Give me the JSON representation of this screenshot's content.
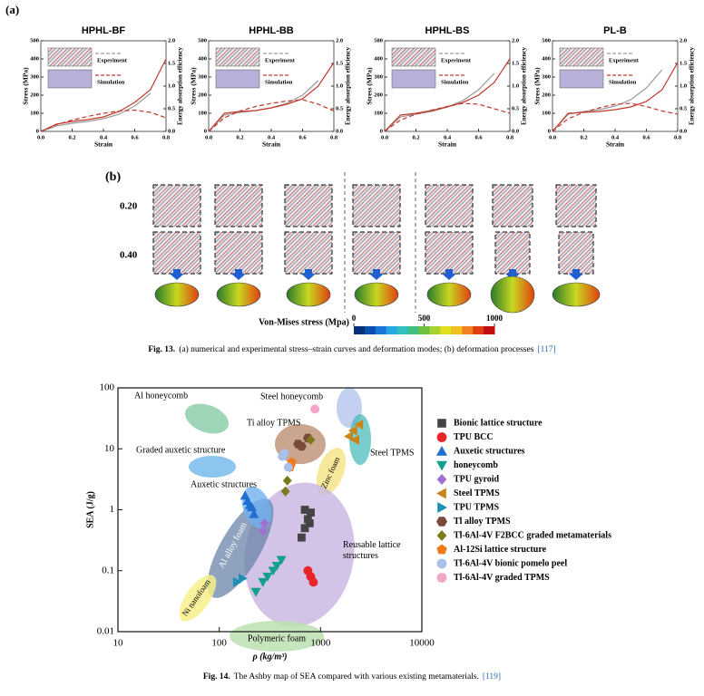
{
  "figure_13": {
    "panel_a_label": "(a)",
    "charts": [
      {
        "title": "HPHL-BF",
        "xlabel": "Strain",
        "ylabel": "Stress (MPa)",
        "y2label": "Energy absorption efficiency",
        "xlim": [
          0,
          0.8
        ],
        "ylim": [
          0,
          500
        ],
        "y2lim": [
          0,
          2.0
        ],
        "xticks": [
          {
            "value": 0,
            "label": "0.0"
          },
          {
            "value": 0.2,
            "label": "0.2"
          },
          {
            "value": 0.4,
            "label": "0.4"
          },
          {
            "value": 0.6,
            "label": "0.6"
          },
          {
            "value": 0.8,
            "label": "0.8"
          }
        ],
        "yticks": [
          0,
          100,
          200,
          300,
          400,
          500
        ],
        "y2ticks": [
          {
            "value": 0,
            "label": "0.0"
          },
          {
            "value": 0.5,
            "label": "0.5"
          },
          {
            "value": 1,
            "label": "1.0"
          },
          {
            "value": 1.5,
            "label": "1.5"
          },
          {
            "value": 2,
            "label": "2.0"
          }
        ],
        "x": [
          0,
          0.1,
          0.2,
          0.3,
          0.4,
          0.5,
          0.6,
          0.7,
          0.8
        ],
        "series": [
          {
            "name": "Experiment",
            "color": "#9a9a9a",
            "values": [
              0,
              30,
              45,
              55,
              70,
              95,
              140,
              210,
              null
            ]
          },
          {
            "name": "Simulation",
            "color": "#c0392b",
            "values": [
              0,
              40,
              55,
              65,
              80,
              110,
              160,
              230,
              400
            ]
          },
          {
            "axis": "y2",
            "color": "#c0392b",
            "dashed": true,
            "values": [
              0,
              0.15,
              0.25,
              0.33,
              0.4,
              0.45,
              0.47,
              0.42,
              0.3
            ]
          }
        ]
      },
      {
        "title": "HPHL-BB",
        "xlabel": "Strain",
        "ylabel": "Stress (MPa)",
        "y2label": "Energy absorption efficiency",
        "xlim": [
          0,
          0.8
        ],
        "ylim": [
          0,
          500
        ],
        "y2lim": [
          0,
          2.0
        ],
        "xticks": [
          {
            "value": 0,
            "label": "0.0"
          },
          {
            "value": 0.2,
            "label": "0.2"
          },
          {
            "value": 0.4,
            "label": "0.4"
          },
          {
            "value": 0.6,
            "label": "0.6"
          },
          {
            "value": 0.8,
            "label": "0.8"
          }
        ],
        "yticks": [
          0,
          100,
          200,
          300,
          400,
          500
        ],
        "y2ticks": [
          {
            "value": 0,
            "label": "0.0"
          },
          {
            "value": 0.5,
            "label": "0.5"
          },
          {
            "value": 1,
            "label": "1.0"
          },
          {
            "value": 1.5,
            "label": "1.5"
          },
          {
            "value": 2,
            "label": "2.0"
          }
        ],
        "x": [
          0,
          0.1,
          0.2,
          0.3,
          0.4,
          0.5,
          0.6,
          0.7,
          0.8
        ],
        "series": [
          {
            "name": "Experiment",
            "color": "#9a9a9a",
            "values": [
              0,
              90,
              105,
              115,
              130,
              155,
              200,
              280,
              null
            ]
          },
          {
            "name": "Simulation",
            "color": "#c0392b",
            "values": [
              0,
              100,
              110,
              115,
              130,
              150,
              180,
              250,
              380
            ]
          },
          {
            "axis": "y2",
            "color": "#c0392b",
            "dashed": true,
            "values": [
              0,
              0.3,
              0.45,
              0.55,
              0.62,
              0.67,
              0.7,
              0.6,
              0.45
            ]
          }
        ]
      },
      {
        "title": "HPHL-BS",
        "xlabel": "Strain",
        "ylabel": "Stress (MPa)",
        "y2label": "Energy absorption efficiency",
        "xlim": [
          0,
          0.8
        ],
        "ylim": [
          0,
          500
        ],
        "y2lim": [
          0,
          2.0
        ],
        "xticks": [
          {
            "value": 0,
            "label": "0.0"
          },
          {
            "value": 0.2,
            "label": "0.2"
          },
          {
            "value": 0.4,
            "label": "0.4"
          },
          {
            "value": 0.6,
            "label": "0.6"
          },
          {
            "value": 0.8,
            "label": "0.8"
          }
        ],
        "yticks": [
          0,
          100,
          200,
          300,
          400,
          500
        ],
        "y2ticks": [
          {
            "value": 0,
            "label": "0.0"
          },
          {
            "value": 0.5,
            "label": "0.5"
          },
          {
            "value": 1,
            "label": "1.0"
          },
          {
            "value": 1.5,
            "label": "1.5"
          },
          {
            "value": 2,
            "label": "2.0"
          }
        ],
        "x": [
          0,
          0.1,
          0.2,
          0.3,
          0.4,
          0.5,
          0.6,
          0.7,
          0.8
        ],
        "series": [
          {
            "name": "Experiment",
            "color": "#9a9a9a",
            "values": [
              0,
              80,
              95,
              110,
              135,
              170,
              230,
              320,
              null
            ]
          },
          {
            "name": "Simulation",
            "color": "#c0392b",
            "values": [
              0,
              90,
              100,
              115,
              135,
              160,
              200,
              270,
              400
            ]
          },
          {
            "axis": "y2",
            "color": "#c0392b",
            "dashed": true,
            "values": [
              0,
              0.25,
              0.38,
              0.47,
              0.55,
              0.62,
              0.6,
              0.5,
              0.4
            ]
          }
        ]
      },
      {
        "title": "PL-B",
        "xlabel": "Strain",
        "ylabel": "Stress (MPa)",
        "y2label": "Energy absorption efficiency",
        "xlim": [
          0,
          0.8
        ],
        "ylim": [
          0,
          500
        ],
        "y2lim": [
          0,
          2.0
        ],
        "xticks": [
          {
            "value": 0,
            "label": "0.0"
          },
          {
            "value": 0.2,
            "label": "0.2"
          },
          {
            "value": 0.4,
            "label": "0.4"
          },
          {
            "value": 0.6,
            "label": "0.6"
          },
          {
            "value": 0.8,
            "label": "0.8"
          }
        ],
        "yticks": [
          0,
          100,
          200,
          300,
          400,
          500
        ],
        "y2ticks": [
          {
            "value": 0,
            "label": "0.0"
          },
          {
            "value": 0.5,
            "label": "0.5"
          },
          {
            "value": 1,
            "label": "1.0"
          },
          {
            "value": 1.5,
            "label": "1.5"
          },
          {
            "value": 2,
            "label": "2.0"
          }
        ],
        "x": [
          0,
          0.1,
          0.2,
          0.3,
          0.4,
          0.5,
          0.6,
          0.7,
          0.8
        ],
        "series": [
          {
            "name": "Experiment",
            "color": "#9a9a9a",
            "values": [
              0,
              95,
              110,
              120,
              140,
              175,
              240,
              340,
              null
            ]
          },
          {
            "name": "Simulation",
            "color": "#c0392b",
            "values": [
              0,
              100,
              105,
              110,
              120,
              135,
              165,
              230,
              380
            ]
          },
          {
            "axis": "y2",
            "color": "#c0392b",
            "dashed": true,
            "values": [
              0,
              0.28,
              0.42,
              0.52,
              0.6,
              0.62,
              0.55,
              0.45,
              0.38
            ]
          }
        ]
      }
    ],
    "panel_b_label": "(b)",
    "strain_labels": [
      "0.20",
      "0.40"
    ],
    "colorbar": {
      "label": "Von-Mises stress  (Mpa)",
      "lim": [
        0,
        1000
      ],
      "ticks": [
        0,
        500,
        1000
      ]
    },
    "caption": {
      "label": "Fig. 13.",
      "text": "(a) numerical and experimental stress–strain curves and deformation modes; (b) deformation processes",
      "ref": "[117]"
    }
  },
  "figure_14": {
    "type": "scatter",
    "xlabel": "ρ (kg/m³)",
    "ylabel": "SEA (J/g)",
    "xscale": "log",
    "yscale": "log",
    "xlim": [
      10,
      10000
    ],
    "ylim": [
      0.01,
      100
    ],
    "xticks": [
      10,
      100,
      1000,
      10000
    ],
    "yticks": [
      0.01,
      0.1,
      1,
      10,
      100
    ],
    "regions": [
      "Al honeycomb",
      "Graded auxetic structure",
      "Auxetic structures",
      "Steel honeycomb",
      "Ti alloy TPMS",
      "Steel TPMS",
      "Zinc foam",
      "Al alloy foam",
      "Reusable lattice structures",
      "Ni nanofoam",
      "Polymeric foam"
    ],
    "series": [
      {
        "name": "Bionic lattice structure",
        "color": "#444444",
        "marker": "square",
        "x": [
          650,
          700,
          750,
          800,
          700,
          780
        ],
        "y": [
          0.35,
          0.5,
          0.7,
          0.9,
          1.0,
          0.6
        ]
      },
      {
        "name": "TPU BCC",
        "color": "#e8262a",
        "marker": "circle",
        "x": [
          750,
          800,
          850
        ],
        "y": [
          0.1,
          0.08,
          0.065
        ]
      },
      {
        "name": "Auxetic structures",
        "color": "#1f6fd1",
        "marker": "triangle-up",
        "x": [
          180,
          200,
          210,
          220,
          190
        ],
        "y": [
          1.7,
          1.2,
          1.1,
          0.85,
          1.4
        ]
      },
      {
        "name": "honeycomb",
        "color": "#13a08a",
        "marker": "triangle-down",
        "x": [
          230,
          270,
          300,
          340,
          370,
          410
        ],
        "y": [
          0.045,
          0.065,
          0.08,
          0.1,
          0.12,
          0.15
        ]
      },
      {
        "name": "TPU gyroid",
        "color": "#a070d0",
        "marker": "diamond",
        "x": [
          270,
          280
        ],
        "y": [
          0.45,
          0.6
        ]
      },
      {
        "name": "Steel TPMS",
        "color": "#c8861a",
        "marker": "triangle-left",
        "x": [
          1900,
          2100,
          2400,
          2200
        ],
        "y": [
          16,
          20,
          25,
          14
        ]
      },
      {
        "name": "TPU TPMS",
        "color": "#1f8fb8",
        "marker": "triangle-right",
        "x": [
          150,
          170
        ],
        "y": [
          0.065,
          0.075
        ]
      },
      {
        "name": "Tl alloy TPMS",
        "color": "#7a4a3a",
        "marker": "hexagon",
        "x": [
          600,
          750,
          650
        ],
        "y": [
          12,
          15,
          11
        ]
      },
      {
        "name": "Tl-6Al-4V F2BCC graded metamaterials",
        "color": "#7d7a1e",
        "marker": "diamond",
        "x": [
          450,
          470,
          500,
          800
        ],
        "y": [
          2,
          3,
          5,
          14
        ]
      },
      {
        "name": "Al-12Si lattice structure",
        "color": "#f07a1a",
        "marker": "pentagon",
        "x": [
          500,
          520
        ],
        "y": [
          5,
          6
        ]
      },
      {
        "name": "Tl-6Al-4V bionic pomelo peel",
        "color": "#a9c0ea",
        "marker": "circle",
        "x": [
          420,
          440,
          480
        ],
        "y": [
          7.5,
          8.5,
          5
        ]
      },
      {
        "name": "Tl-6Al-4V graded TPMS",
        "color": "#f3a6c8",
        "marker": "circle",
        "x": [
          880
        ],
        "y": [
          45
        ]
      }
    ],
    "caption": {
      "label": "Fig. 14.",
      "text": "The Ashby map of SEA compared with various existing metamaterials.",
      "ref": "[119]"
    }
  }
}
